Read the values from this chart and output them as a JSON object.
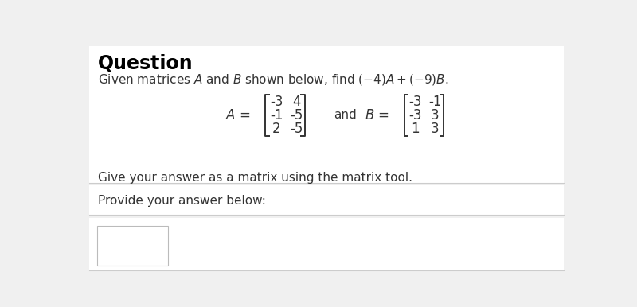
{
  "title": "Question",
  "subtitle": "Given matrices $A$ and $B$ shown below, find $(-4)A + (-9)B$.",
  "and_text": "and",
  "instruction": "Give your answer as a matrix using the matrix tool.",
  "provide_text": "Provide your answer below:",
  "bg_color": "#f0f0f0",
  "panel_color": "#ffffff",
  "title_color": "#000000",
  "text_color": "#333333",
  "divider_color": "#cccccc",
  "A_rows": [
    [
      "-3",
      "4"
    ],
    [
      "-1",
      "-5"
    ],
    [
      "2",
      "-5"
    ]
  ],
  "B_rows": [
    [
      "-3",
      "-1"
    ],
    [
      "-3",
      "3"
    ],
    [
      "1",
      "3"
    ]
  ]
}
